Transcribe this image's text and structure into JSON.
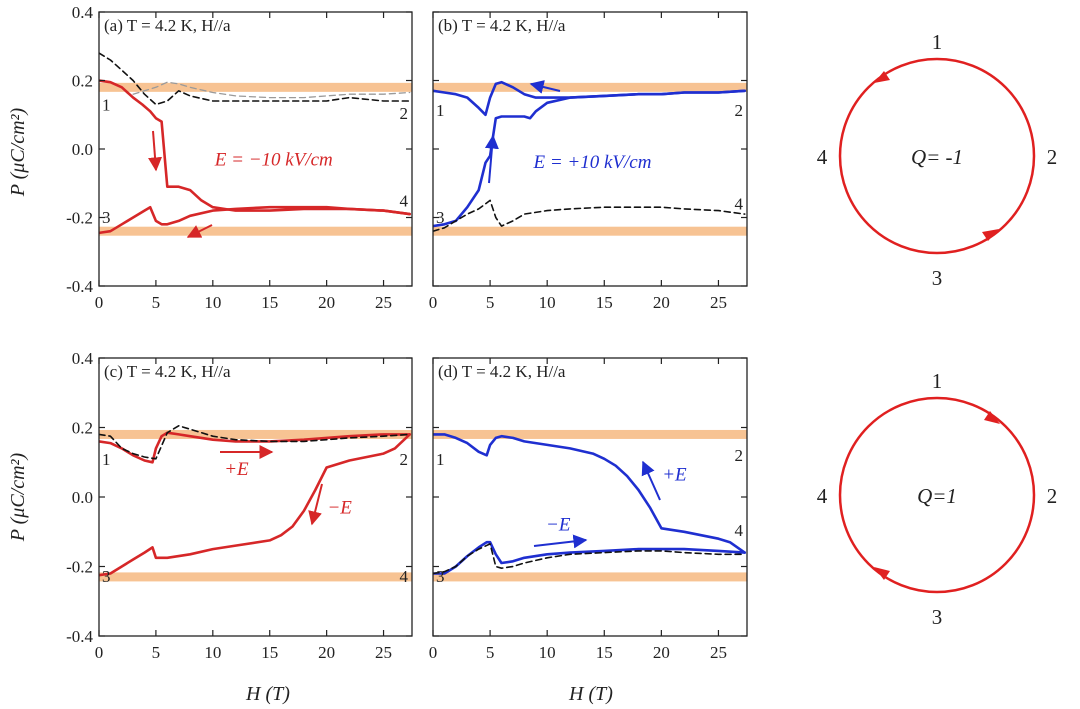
{
  "figure": {
    "y_axis_label_top": "P (μC/cm²)",
    "y_axis_label_bottom": "P (μC/cm²)",
    "x_axis_label_left": "H (T)",
    "x_axis_label_right": "H (T)"
  },
  "colors": {
    "red": "#d62728",
    "blue": "#1f2fd0",
    "dashed": "#111111",
    "gray_dashed": "#9a9a9a",
    "band": "#f6b880"
  },
  "diagrams": [
    {
      "label": "Q= -1",
      "numbers": [
        "1",
        "2",
        "3",
        "4"
      ],
      "arrows": "counterclockwise"
    },
    {
      "label": "Q=1",
      "numbers": [
        "1",
        "2",
        "3",
        "4"
      ],
      "arrows": "clockwise"
    }
  ],
  "chart_data": [
    {
      "type": "line",
      "panel_label": "(a) T = 4.2 K, H//a",
      "xlim": [
        0,
        27.5
      ],
      "ylim": [
        -0.4,
        0.4
      ],
      "xticks": [
        0,
        5,
        10,
        15,
        20,
        25
      ],
      "yticks": [
        -0.4,
        -0.2,
        0.0,
        0.2,
        0.4
      ],
      "show_y_tick_labels": true,
      "bands": [
        0.18,
        -0.24
      ],
      "corner_labels": [
        "1",
        "2",
        "3",
        "4"
      ],
      "annotations": [
        "E = −10 kV/cm"
      ],
      "series": [
        {
          "style": "red-solid",
          "x": [
            0,
            1,
            2,
            3,
            3.8,
            4.5,
            5,
            5.5,
            6,
            7,
            8,
            9,
            10,
            12,
            15,
            18,
            20,
            22,
            25,
            27.3
          ],
          "y": [
            0.2,
            0.195,
            0.18,
            0.15,
            0.13,
            0.11,
            0.09,
            0.08,
            -0.11,
            -0.11,
            -0.12,
            -0.15,
            -0.17,
            -0.18,
            -0.18,
            -0.175,
            -0.175,
            -0.175,
            -0.18,
            -0.19
          ]
        },
        {
          "style": "red-solid",
          "x": [
            0,
            1,
            2,
            3,
            4,
            4.5,
            5,
            5.5,
            6,
            7,
            8,
            10,
            12,
            15,
            18,
            20,
            22,
            25,
            27.3
          ],
          "y": [
            -0.245,
            -0.24,
            -0.22,
            -0.2,
            -0.18,
            -0.17,
            -0.21,
            -0.22,
            -0.22,
            -0.21,
            -0.195,
            -0.18,
            -0.175,
            -0.17,
            -0.17,
            -0.17,
            -0.175,
            -0.18,
            -0.19
          ]
        },
        {
          "style": "black-dashed",
          "x": [
            0,
            1,
            2,
            3,
            4,
            5,
            6,
            7,
            8,
            10,
            12,
            15,
            18,
            20,
            22,
            25,
            27.3
          ],
          "y": [
            0.28,
            0.26,
            0.23,
            0.2,
            0.16,
            0.13,
            0.14,
            0.17,
            0.155,
            0.14,
            0.14,
            0.14,
            0.14,
            0.14,
            0.15,
            0.14,
            0.14
          ]
        },
        {
          "style": "gray-dashed",
          "x": [
            3,
            4,
            5,
            6,
            7,
            8,
            10,
            12,
            15,
            18,
            20,
            22,
            25,
            27.3
          ],
          "y": [
            0.16,
            0.17,
            0.18,
            0.195,
            0.19,
            0.18,
            0.165,
            0.155,
            0.15,
            0.15,
            0.155,
            0.16,
            0.16,
            0.165
          ]
        }
      ]
    },
    {
      "type": "line",
      "panel_label": "(b) T = 4.2 K, H//a",
      "xlim": [
        0,
        27.5
      ],
      "ylim": [
        -0.4,
        0.4
      ],
      "xticks": [
        0,
        5,
        10,
        15,
        20,
        25
      ],
      "yticks": [
        -0.4,
        -0.2,
        0.0,
        0.2,
        0.4
      ],
      "show_y_tick_labels": false,
      "bands": [
        0.18,
        -0.24
      ],
      "corner_labels": [
        "1",
        "2",
        "3",
        "4"
      ],
      "annotations": [
        "E = +10 kV/cm"
      ],
      "series": [
        {
          "style": "blue-solid",
          "x": [
            0,
            1,
            2,
            3,
            4,
            4.6,
            5,
            5.5,
            6,
            7,
            8,
            9,
            10,
            12,
            15,
            18,
            20,
            22,
            25,
            27.3
          ],
          "y": [
            0.17,
            0.165,
            0.16,
            0.15,
            0.12,
            0.1,
            0.15,
            0.19,
            0.195,
            0.18,
            0.16,
            0.15,
            0.15,
            0.15,
            0.155,
            0.16,
            0.16,
            0.165,
            0.165,
            0.17
          ]
        },
        {
          "style": "blue-solid",
          "x": [
            0,
            1,
            2,
            3,
            4,
            4.6,
            5,
            5.5,
            6,
            7,
            8,
            8.5,
            9,
            10,
            12,
            15,
            18,
            20,
            22,
            25,
            27.3
          ],
          "y": [
            -0.225,
            -0.22,
            -0.21,
            -0.17,
            -0.12,
            -0.04,
            -0.02,
            0.09,
            0.095,
            0.095,
            0.095,
            0.09,
            0.11,
            0.135,
            0.15,
            0.155,
            0.16,
            0.16,
            0.165,
            0.165,
            0.17
          ]
        },
        {
          "style": "black-dashed",
          "x": [
            0,
            1,
            2,
            3,
            4,
            5,
            5.5,
            6,
            7,
            8,
            10,
            12,
            15,
            18,
            20,
            22,
            25,
            27.3
          ],
          "y": [
            -0.24,
            -0.23,
            -0.21,
            -0.19,
            -0.175,
            -0.15,
            -0.2,
            -0.225,
            -0.21,
            -0.19,
            -0.18,
            -0.175,
            -0.17,
            -0.17,
            -0.17,
            -0.175,
            -0.18,
            -0.19
          ]
        }
      ]
    },
    {
      "type": "line",
      "panel_label": "(c) T = 4.2 K, H//a",
      "xlim": [
        0,
        27.5
      ],
      "ylim": [
        -0.4,
        0.4
      ],
      "xticks": [
        0,
        5,
        10,
        15,
        20,
        25
      ],
      "yticks": [
        -0.4,
        -0.2,
        0.0,
        0.2,
        0.4
      ],
      "show_y_tick_labels": true,
      "bands": [
        0.18,
        -0.23
      ],
      "corner_labels": [
        "1",
        "2",
        "3",
        "4"
      ],
      "annotations": [
        "+E",
        "−E"
      ],
      "series": [
        {
          "style": "red-solid",
          "x": [
            0,
            1,
            2,
            3,
            4,
            4.7,
            5,
            5.5,
            6,
            7,
            8,
            10,
            12,
            15,
            18,
            20,
            22,
            25,
            27.3
          ],
          "y": [
            0.16,
            0.155,
            0.14,
            0.12,
            0.105,
            0.1,
            0.14,
            0.175,
            0.185,
            0.18,
            0.175,
            0.165,
            0.16,
            0.16,
            0.165,
            0.17,
            0.175,
            0.18,
            0.18
          ]
        },
        {
          "style": "red-solid",
          "x": [
            0,
            1,
            2,
            3,
            4,
            4.7,
            5,
            6,
            8,
            10,
            12,
            15,
            16,
            17,
            18,
            19,
            20,
            22,
            25,
            26,
            27.3
          ],
          "y": [
            -0.225,
            -0.22,
            -0.2,
            -0.18,
            -0.16,
            -0.145,
            -0.175,
            -0.175,
            -0.165,
            -0.15,
            -0.14,
            -0.125,
            -0.11,
            -0.085,
            -0.04,
            0.02,
            0.085,
            0.105,
            0.125,
            0.14,
            0.18
          ]
        },
        {
          "style": "black-dashed",
          "x": [
            0,
            1,
            2,
            3,
            4,
            5,
            6,
            7,
            8,
            10,
            12,
            15,
            18,
            20,
            22,
            25,
            27.3
          ],
          "y": [
            0.18,
            0.175,
            0.14,
            0.125,
            0.115,
            0.11,
            0.185,
            0.205,
            0.195,
            0.175,
            0.165,
            0.16,
            0.16,
            0.165,
            0.17,
            0.175,
            0.18
          ]
        }
      ]
    },
    {
      "type": "line",
      "panel_label": "(d) T = 4.2 K, H//a",
      "xlim": [
        0,
        27.5
      ],
      "ylim": [
        -0.4,
        0.4
      ],
      "xticks": [
        0,
        5,
        10,
        15,
        20,
        25
      ],
      "yticks": [
        -0.4,
        -0.2,
        0.0,
        0.2,
        0.4
      ],
      "show_y_tick_labels": false,
      "bands": [
        0.18,
        -0.23
      ],
      "corner_labels": [
        "1",
        "2",
        "3",
        "4"
      ],
      "annotations": [
        "+E",
        "−E"
      ],
      "series": [
        {
          "style": "blue-solid",
          "x": [
            0,
            1,
            2,
            3,
            4,
            4.7,
            5,
            5.5,
            6,
            7,
            8,
            10,
            12,
            14,
            15,
            16,
            17,
            18,
            19,
            20,
            22,
            25,
            26,
            27.3
          ],
          "y": [
            0.18,
            0.18,
            0.17,
            0.155,
            0.13,
            0.12,
            0.15,
            0.17,
            0.175,
            0.17,
            0.16,
            0.15,
            0.14,
            0.125,
            0.11,
            0.09,
            0.06,
            0.02,
            -0.03,
            -0.09,
            -0.1,
            -0.12,
            -0.13,
            -0.16
          ]
        },
        {
          "style": "blue-solid",
          "x": [
            0,
            1,
            2,
            3,
            4,
            4.7,
            5,
            5.5,
            6,
            7,
            8,
            10,
            12,
            15,
            18,
            20,
            22,
            25,
            27.3
          ],
          "y": [
            -0.22,
            -0.22,
            -0.2,
            -0.17,
            -0.145,
            -0.13,
            -0.13,
            -0.165,
            -0.19,
            -0.185,
            -0.175,
            -0.165,
            -0.16,
            -0.155,
            -0.15,
            -0.15,
            -0.15,
            -0.155,
            -0.16
          ]
        },
        {
          "style": "black-dashed",
          "x": [
            0,
            1,
            2,
            3,
            4,
            5,
            5.5,
            6,
            7,
            8,
            10,
            12,
            15,
            18,
            20,
            22,
            25,
            27.3
          ],
          "y": [
            -0.22,
            -0.215,
            -0.2,
            -0.17,
            -0.15,
            -0.135,
            -0.2,
            -0.205,
            -0.2,
            -0.19,
            -0.175,
            -0.165,
            -0.16,
            -0.155,
            -0.155,
            -0.16,
            -0.165,
            -0.165
          ]
        }
      ]
    }
  ]
}
